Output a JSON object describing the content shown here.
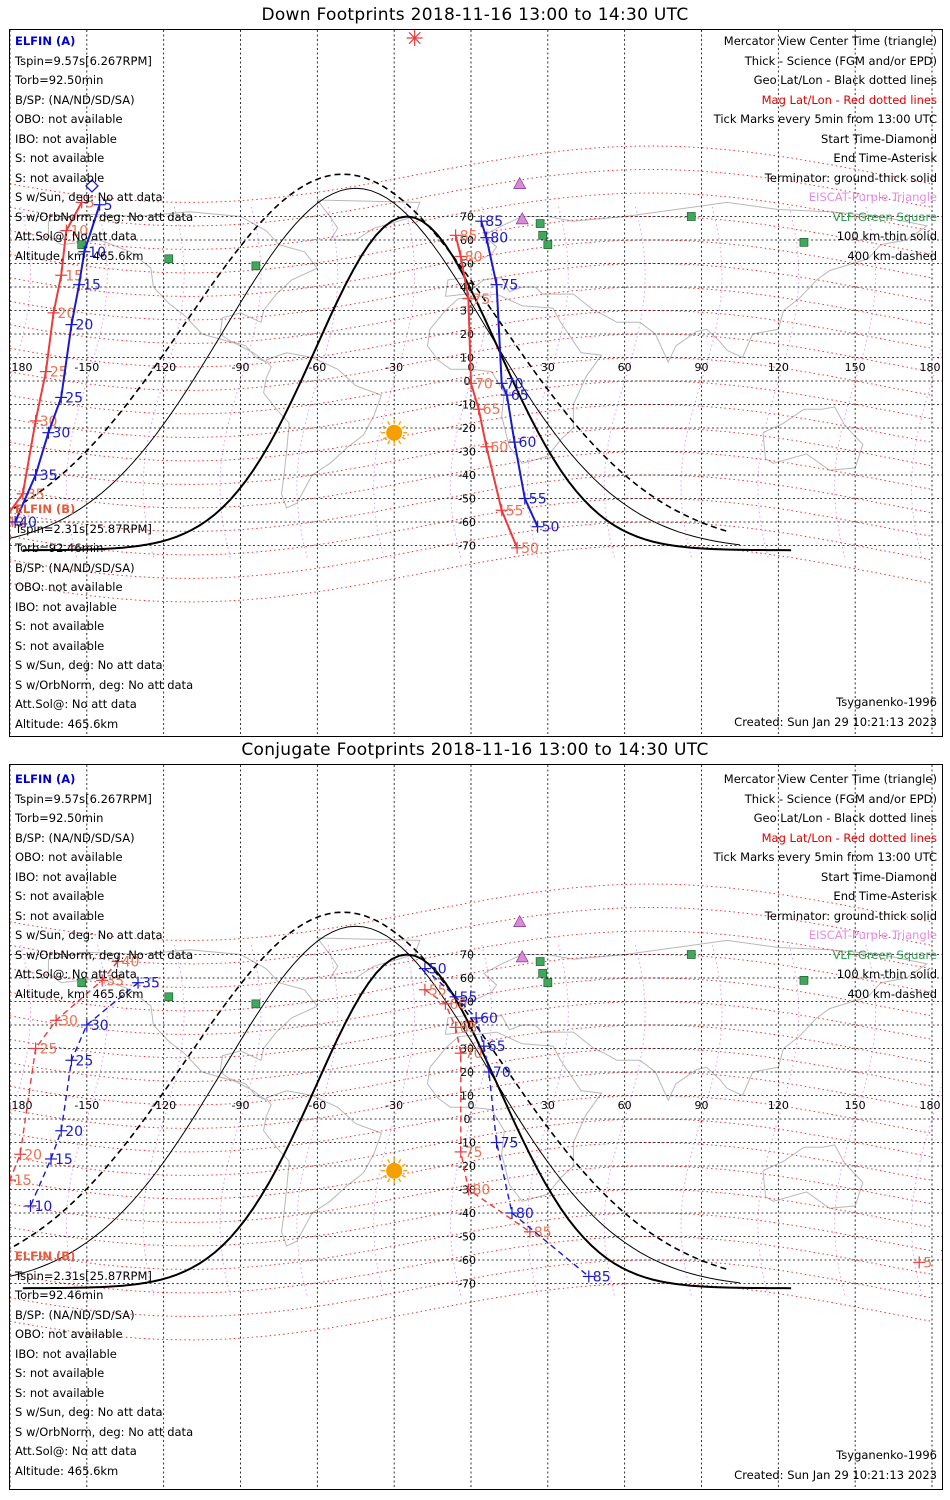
{
  "panels": [
    {
      "id": "down",
      "title": "Down Footprints 2018-11-16 13:00 to 14:30 UTC",
      "lon_ticks": [
        "-180",
        "-150",
        "-120",
        "-90",
        "-60",
        "-30",
        "0",
        "30",
        "60",
        "90",
        "120",
        "150",
        "180"
      ],
      "lat_ticks": [
        "70",
        "60",
        "50",
        "40",
        "30",
        "20",
        "10",
        "0",
        "-10",
        "-20",
        "-30",
        "-40",
        "-50",
        "-60",
        "-70"
      ],
      "left_info_a": [
        "ELFIN (A)",
        "Tspin=9.57s[6.267RPM]",
        "Torb=92.50min",
        "B/SP: (NA/ND/SD/SA)",
        "OBO: not available",
        "IBO: not available",
        "S: not available",
        "S: not available",
        "S w/Sun, deg: No att data",
        "S w/OrbNorm, deg: No att data",
        "Att.Sol@: No att data",
        "Altitude, km: 465.6km"
      ],
      "left_info_b": [
        "ELFIN (B)",
        "Tspin=2.31s[25.87RPM]",
        "Torb=92.46min",
        "B/SP: (NA/ND/SD/SA)",
        "OBO: not available",
        "IBO: not available",
        "S: not available",
        "S: not available",
        "S w/Sun, deg: No att data",
        "S w/OrbNorm, deg: No att data",
        "Att.Sol@: No att data",
        "Altitude: 465.6km"
      ],
      "legend": [
        "Mercator View Center Time (triangle)",
        "Thick - Science (FGM and/or EPD)",
        "Geo Lat/Lon - Black dotted lines",
        "Mag Lat/Lon - Red dotted lines",
        "Tick Marks every 5min from 13:00 UTC",
        "Start Time-Diamond",
        "End Time-Asterisk",
        "Terminator: ground-thick solid",
        "EISCAT-Purple Triangle",
        "VLF-Green Square",
        "100 km-thin solid",
        "400 km-dashed"
      ],
      "model": "Tsyganenko-1996",
      "created": "Created: Sun Jan 29 10:21:13 2023",
      "track_a_labels": [
        {
          "t": "5",
          "lon": -145,
          "lat": 75
        },
        {
          "t": "10",
          "lon": -151,
          "lat": 55
        },
        {
          "t": "15",
          "lon": -153,
          "lat": 41
        },
        {
          "t": "20",
          "lon": -156,
          "lat": 24
        },
        {
          "t": "25",
          "lon": -160,
          "lat": -7
        },
        {
          "t": "30",
          "lon": -165,
          "lat": -22
        },
        {
          "t": "35",
          "lon": -170,
          "lat": -40
        },
        {
          "t": "40",
          "lon": -178,
          "lat": -60
        },
        {
          "t": "85",
          "lon": 4,
          "lat": 68
        },
        {
          "t": "80",
          "lon": 6,
          "lat": 61
        },
        {
          "t": "75",
          "lon": 10,
          "lat": 41
        },
        {
          "t": "70",
          "lon": 12,
          "lat": -1
        },
        {
          "t": "65",
          "lon": 14,
          "lat": -6
        },
        {
          "t": "60",
          "lon": 17,
          "lat": -26
        },
        {
          "t": "55",
          "lon": 21,
          "lat": -50
        },
        {
          "t": "50",
          "lon": 26,
          "lat": -62
        }
      ],
      "track_b_labels": [
        {
          "t": "5",
          "lon": -152,
          "lat": 76
        },
        {
          "t": "10",
          "lon": -158,
          "lat": 64
        },
        {
          "t": "15",
          "lon": -160,
          "lat": 45
        },
        {
          "t": "20",
          "lon": -163,
          "lat": 29
        },
        {
          "t": "25",
          "lon": -166,
          "lat": 4
        },
        {
          "t": "30",
          "lon": -170,
          "lat": -17
        },
        {
          "t": "35",
          "lon": -175,
          "lat": -48
        },
        {
          "t": "40",
          "lon": -183,
          "lat": -60
        },
        {
          "t": "85",
          "lon": -6,
          "lat": 62
        },
        {
          "t": "80",
          "lon": -4,
          "lat": 53
        },
        {
          "t": "75",
          "lon": -1,
          "lat": 35
        },
        {
          "t": "70",
          "lon": 0,
          "lat": -1
        },
        {
          "t": "65",
          "lon": 3,
          "lat": -12
        },
        {
          "t": "60",
          "lon": 6,
          "lat": -28
        },
        {
          "t": "55",
          "lon": 12,
          "lat": -55
        },
        {
          "t": "50",
          "lon": 18,
          "lat": -71
        }
      ]
    },
    {
      "id": "conjugate",
      "title": "Conjugate Footprints 2018-11-16 13:00 to 14:30 UTC",
      "lon_ticks": [
        "-180",
        "-150",
        "-120",
        "-90",
        "-60",
        "-30",
        "0",
        "30",
        "60",
        "90",
        "120",
        "150",
        "180"
      ],
      "lat_ticks": [
        "70",
        "60",
        "50",
        "40",
        "30",
        "20",
        "10",
        "0",
        "-10",
        "-20",
        "-30",
        "-40",
        "-50",
        "-60",
        "-70"
      ],
      "left_info_a": [
        "ELFIN (A)",
        "Tspin=9.57s[6.267RPM]",
        "Torb=92.50min",
        "B/SP: (NA/ND/SD/SA)",
        "OBO: not available",
        "IBO: not available",
        "S: not available",
        "S: not available",
        "S w/Sun, deg: No att data",
        "S w/OrbNorm, deg: No att data",
        "Att.Sol@: No att data",
        "Altitude, km: 465.6km"
      ],
      "left_info_b": [
        "ELFIN (B)",
        "Tspin=2.31s[25.87RPM]",
        "Torb=92.46min",
        "B/SP: (NA/ND/SD/SA)",
        "OBO: not available",
        "IBO: not available",
        "S: not available",
        "S: not available",
        "S w/Sun, deg: No att data",
        "S w/OrbNorm, deg: No att data",
        "Att.Sol@: No att data",
        "Altitude: 465.6km"
      ],
      "legend": [
        "Mercator View Center Time (triangle)",
        "Thick - Science (FGM and/or EPD)",
        "Geo Lat/Lon - Black dotted lines",
        "Mag Lat/Lon - Red dotted lines",
        "Tick Marks every 5min from 13:00 UTC",
        "Start Time-Diamond",
        "End Time-Asterisk",
        "Terminator: ground-thick solid",
        "EISCAT-Purple Triangle",
        "VLF-Green Square",
        "100 km-thin solid",
        "400 km-dashed"
      ],
      "model": "Tsyganenko-1996",
      "created": "Created: Sun Jan 29 10:21:13 2023",
      "track_a_labels": [
        {
          "t": "35",
          "lon": -130,
          "lat": 58
        },
        {
          "t": "30",
          "lon": -150,
          "lat": 40
        },
        {
          "t": "25",
          "lon": -156,
          "lat": 25
        },
        {
          "t": "20",
          "lon": -160,
          "lat": -5
        },
        {
          "t": "15",
          "lon": -164,
          "lat": -17
        },
        {
          "t": "10",
          "lon": -172,
          "lat": -37
        },
        {
          "t": "50",
          "lon": -18,
          "lat": 64
        },
        {
          "t": "55",
          "lon": -6,
          "lat": 52
        },
        {
          "t": "60",
          "lon": 2,
          "lat": 43
        },
        {
          "t": "65",
          "lon": 5,
          "lat": 31
        },
        {
          "t": "70",
          "lon": 7,
          "lat": 20
        },
        {
          "t": "75",
          "lon": 10,
          "lat": -10
        },
        {
          "t": "80",
          "lon": 16,
          "lat": -40
        },
        {
          "t": "85",
          "lon": 46,
          "lat": -67
        },
        {
          "t": "5",
          "lon": 186,
          "lat": -56
        }
      ],
      "track_b_labels": [
        {
          "t": "40",
          "lon": -138,
          "lat": 67
        },
        {
          "t": "35",
          "lon": -144,
          "lat": 59
        },
        {
          "t": "30",
          "lon": -162,
          "lat": 42
        },
        {
          "t": "25",
          "lon": -170,
          "lat": 30
        },
        {
          "t": "20",
          "lon": -176,
          "lat": -15
        },
        {
          "t": "15",
          "lon": -180,
          "lat": -26
        },
        {
          "t": "10",
          "lon": -189,
          "lat": -37
        },
        {
          "t": "55",
          "lon": -18,
          "lat": 55
        },
        {
          "t": "60",
          "lon": -10,
          "lat": 49
        },
        {
          "t": "65",
          "lon": -6,
          "lat": 39
        },
        {
          "t": "70",
          "lon": -4,
          "lat": 28
        },
        {
          "t": "75",
          "lon": -4,
          "lat": -14
        },
        {
          "t": "80",
          "lon": -1,
          "lat": -30
        },
        {
          "t": "85",
          "lon": 23,
          "lat": -48
        },
        {
          "t": "5",
          "lon": 175,
          "lat": -61
        }
      ]
    }
  ]
}
